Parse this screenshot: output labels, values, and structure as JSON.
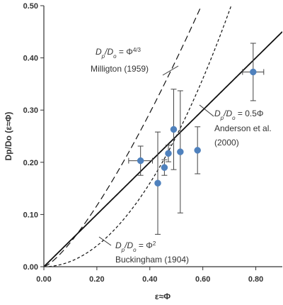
{
  "chart_data": {
    "type": "scatter",
    "title": "",
    "xlabel": "ε≈Φ",
    "ylabel": "Dp/Do (ε≈Φ)",
    "xlim": [
      0,
      0.9
    ],
    "ylim": [
      0,
      0.5
    ],
    "grid": false,
    "xticks": [
      "0.00",
      "0.20",
      "0.40",
      "0.60",
      "0.80"
    ],
    "yticks": [
      "0.00",
      "0.10",
      "0.20",
      "0.30",
      "0.40",
      "0.50"
    ],
    "xtick_values": [
      0,
      0.2,
      0.4,
      0.6,
      0.8
    ],
    "ytick_values": [
      0,
      0.1,
      0.2,
      0.3,
      0.4,
      0.5
    ],
    "marker_color": "#4f81bd",
    "series": [
      {
        "type": "scatter",
        "values": [
          {
            "x": 0.365,
            "y": 0.203,
            "xerr": 0.045,
            "yerr": 0.028
          },
          {
            "x": 0.43,
            "y": 0.16,
            "xerr": 0.0,
            "yerr": 0.098
          },
          {
            "x": 0.455,
            "y": 0.19,
            "xerr": 0.0,
            "yerr": 0.015
          },
          {
            "x": 0.47,
            "y": 0.217,
            "xerr": 0.0,
            "yerr": 0.016
          },
          {
            "x": 0.49,
            "y": 0.263,
            "xerr": 0.0,
            "yerr": 0.077
          },
          {
            "x": 0.515,
            "y": 0.22,
            "xerr": 0.0,
            "yerr": 0.117
          },
          {
            "x": 0.58,
            "y": 0.223,
            "xerr": 0.0,
            "yerr": 0.045
          },
          {
            "x": 0.79,
            "y": 0.373,
            "xerr": 0.04,
            "yerr": 0.055
          }
        ]
      },
      {
        "type": "line",
        "model": "linear",
        "coef": 0.5,
        "exp": 1,
        "style": "solid"
      },
      {
        "type": "line",
        "model": "power",
        "coef": 1,
        "exp": 1.3333,
        "style": "dashed"
      },
      {
        "type": "line",
        "model": "power",
        "coef": 1,
        "exp": 2,
        "style": "dotted"
      }
    ],
    "annotations": {
      "millington": {
        "eq_prefix": "D",
        "eq_sub1": "p",
        "eq_mid": "/D",
        "eq_sub2": "o",
        "eq_rhs": " = Φ",
        "eq_sup": "4/3",
        "author": "Milligton (1959)"
      },
      "anderson": {
        "eq_prefix": "D",
        "eq_sub1": "p",
        "eq_mid": "/D",
        "eq_sub2": "o",
        "eq_rhs": " = 0.5Φ",
        "author1": "Anderson et al.",
        "author2": "(2000)"
      },
      "buckingham": {
        "eq_prefix": "D",
        "eq_sub1": "p",
        "eq_mid": "/D",
        "eq_sub2": "o",
        "eq_rhs": " = Φ",
        "eq_sup": "2",
        "author": "Buckingham (1904)"
      }
    }
  }
}
